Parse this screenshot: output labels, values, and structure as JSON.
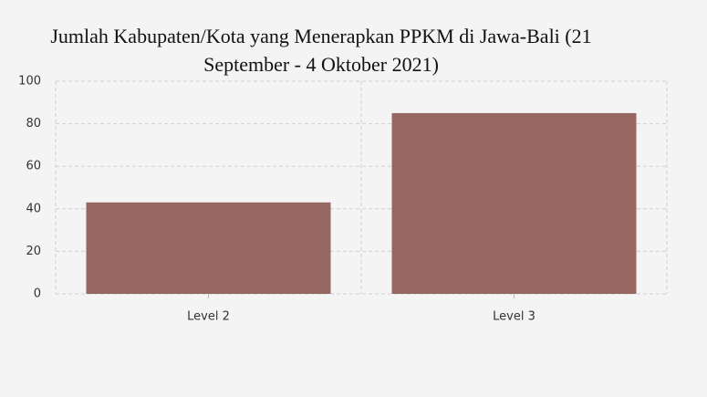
{
  "chart_data": {
    "type": "bar",
    "title": "Jumlah Kabupaten/Kota yang Menerapkan PPKM di Jawa-Bali (21 September - 4 Oktober 2021)",
    "categories": [
      "Level 2",
      "Level 3"
    ],
    "values": [
      43,
      85
    ],
    "color": "#956760",
    "ylim": [
      0,
      100
    ],
    "yticks": [
      0,
      20,
      40,
      60,
      80,
      100
    ],
    "grid": true
  }
}
